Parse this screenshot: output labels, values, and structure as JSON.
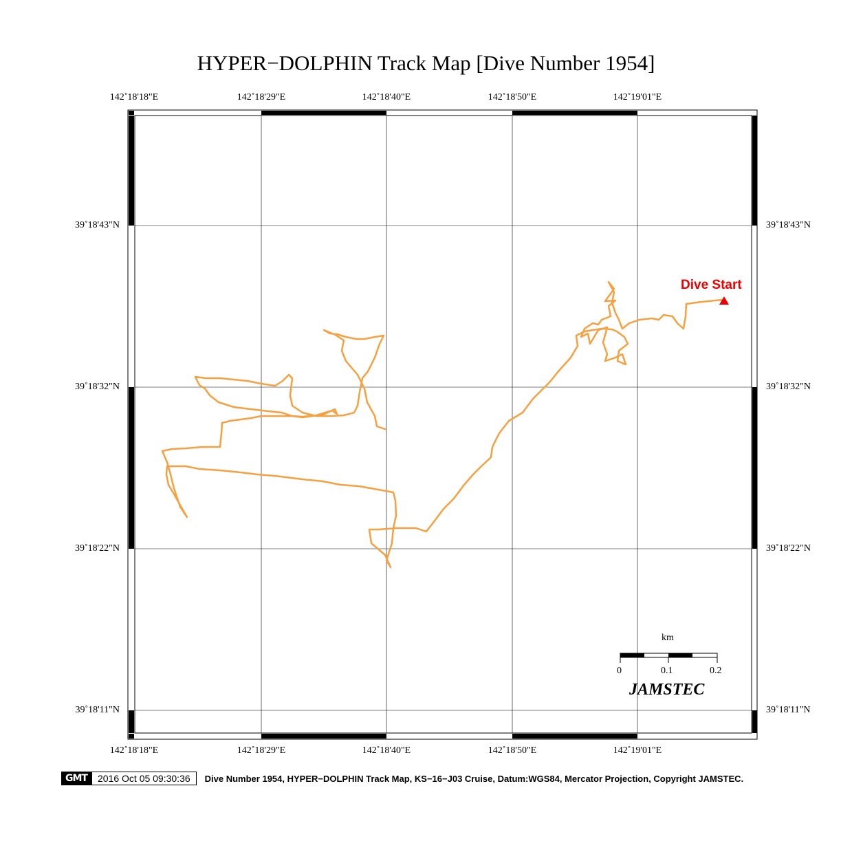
{
  "title": "HYPER−DOLPHIN Track Map [Dive Number 1954]",
  "lon_ticks": [
    "142˚18'18\"E",
    "142˚18'29\"E",
    "142˚18'40\"E",
    "142˚18'50\"E",
    "142˚19'01\"E"
  ],
  "lat_ticks": [
    "39˚18'43\"N",
    "39˚18'32\"N",
    "39˚18'22\"N",
    "39˚18'11\"N"
  ],
  "marker": {
    "label": "Dive Start",
    "color": "#ee0000"
  },
  "track_color": "#f7a040",
  "scale_bar": {
    "unit": "km",
    "labels": [
      "0",
      "0.1",
      "0.2"
    ]
  },
  "brand": "JAMSTEC",
  "footer": {
    "logo": "GMT",
    "timestamp": "2016 Oct 05 09:30:36",
    "caption": "Dive Number 1954, HYPER−DOLPHIN Track Map, KS−16−J03 Cruise, Datum:WGS84, Mercator Projection, Copyright JAMSTEC."
  }
}
